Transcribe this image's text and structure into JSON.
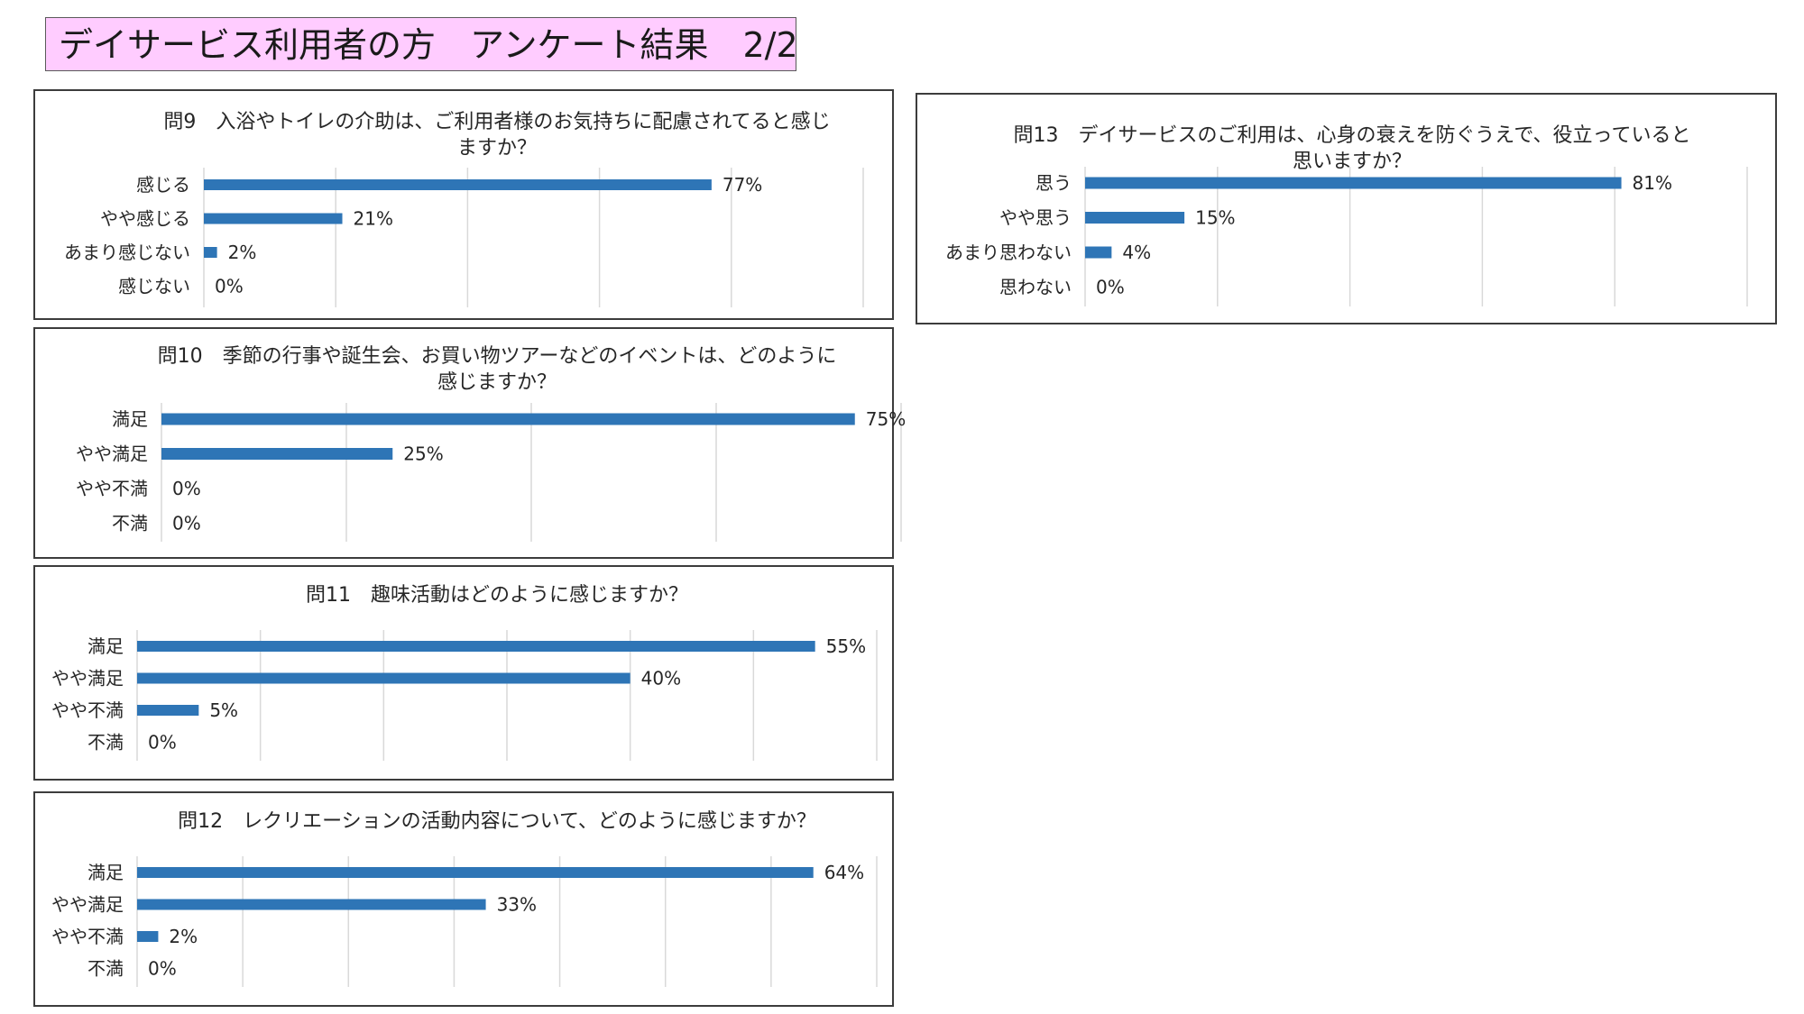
{
  "page": {
    "title": "デイサービス利用者の方　アンケート結果　2/2"
  },
  "colors": {
    "title_bg": "#ffccff",
    "bar": "#2e75b6",
    "grid": "#d9d9d9"
  },
  "chart_data": [
    {
      "id": "q9",
      "type": "bar",
      "orientation": "horizontal",
      "title_lines": [
        "問9　入浴やトイレの介助は、ご利用者様のお気持ちに配慮されてると感じ",
        "ますか？"
      ],
      "categories": [
        "感じる",
        "やや感じる",
        "あまり感じない",
        "感じない"
      ],
      "values": [
        77,
        21,
        2,
        0
      ],
      "value_labels": [
        "77%",
        "21%",
        "2%",
        "0%"
      ],
      "xlim": [
        0,
        100
      ],
      "gridlines": [
        0,
        20,
        40,
        60,
        80,
        100
      ],
      "grid": true,
      "legend": "none"
    },
    {
      "id": "q10",
      "type": "bar",
      "orientation": "horizontal",
      "title_lines": [
        "問10　季節の行事や誕生会、お買い物ツアーなどのイベントは、どのように",
        "感じますか？"
      ],
      "categories": [
        "満足",
        "やや満足",
        "やや不満",
        "不満"
      ],
      "values": [
        75,
        25,
        0,
        0
      ],
      "value_labels": [
        "75%",
        "25%",
        "0%",
        "0%"
      ],
      "xlim": [
        0,
        80
      ],
      "gridlines": [
        0,
        20,
        40,
        60,
        80
      ],
      "grid": true,
      "legend": "none"
    },
    {
      "id": "q11",
      "type": "bar",
      "orientation": "horizontal",
      "title_lines": [
        "問11　趣味活動はどのように感じますか？"
      ],
      "categories": [
        "満足",
        "やや満足",
        "やや不満",
        "不満"
      ],
      "values": [
        55,
        40,
        5,
        0
      ],
      "value_labels": [
        "55%",
        "40%",
        "5%",
        "0%"
      ],
      "xlim": [
        0,
        60
      ],
      "gridlines": [
        0,
        10,
        20,
        30,
        40,
        50,
        60
      ],
      "grid": true,
      "legend": "none"
    },
    {
      "id": "q12",
      "type": "bar",
      "orientation": "horizontal",
      "title_lines": [
        "問12　レクリエーションの活動内容について、どのように感じますか？"
      ],
      "categories": [
        "満足",
        "やや満足",
        "やや不満",
        "不満"
      ],
      "values": [
        64,
        33,
        2,
        0
      ],
      "value_labels": [
        "64%",
        "33%",
        "2%",
        "0%"
      ],
      "xlim": [
        0,
        70
      ],
      "gridlines": [
        0,
        10,
        20,
        30,
        40,
        50,
        60,
        70
      ],
      "grid": true,
      "legend": "none"
    },
    {
      "id": "q13",
      "type": "bar",
      "orientation": "horizontal",
      "title_lines": [
        "問13　デイサービスのご利用は、心身の衰えを防ぐうえで、役立っていると",
        "思いますか？"
      ],
      "categories": [
        "思う",
        "やや思う",
        "あまり思わない",
        "思わない"
      ],
      "values": [
        81,
        15,
        4,
        0
      ],
      "value_labels": [
        "81%",
        "15%",
        "4%",
        "0%"
      ],
      "xlim": [
        0,
        100
      ],
      "gridlines": [
        0,
        20,
        40,
        60,
        80,
        100
      ],
      "grid": true,
      "legend": "none"
    }
  ]
}
